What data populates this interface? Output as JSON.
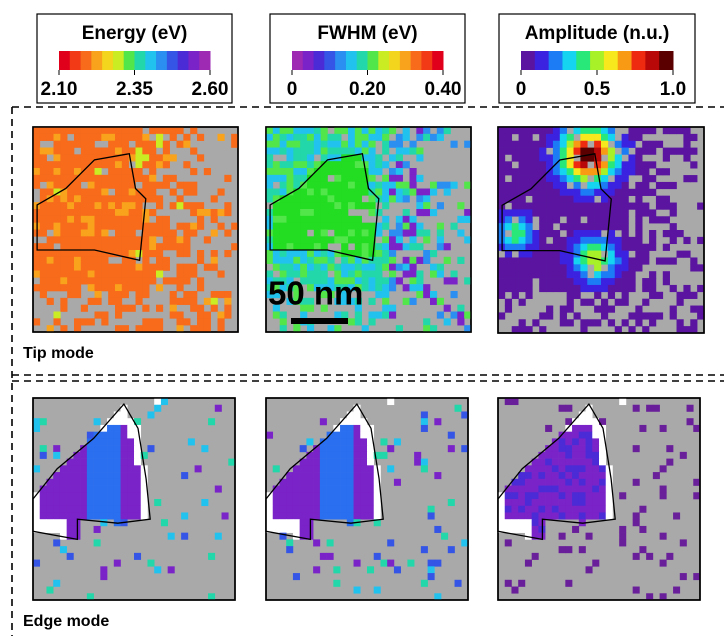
{
  "colorbars": [
    {
      "title": "Energy (eV)",
      "lim": [
        2.1,
        2.6
      ],
      "ticks": [
        {
          "value": 2.1,
          "label": "2.10"
        },
        {
          "value": 2.35,
          "label": "2.35"
        },
        {
          "value": 2.6,
          "label": "2.60"
        }
      ],
      "colors": [
        "#e0001c",
        "#f23a16",
        "#f76b1b",
        "#f9a21c",
        "#f4d51e",
        "#c9ec22",
        "#52e64a",
        "#22d7a9",
        "#21c3ee",
        "#2a8ff0",
        "#3455e6",
        "#4a2bd6",
        "#7a23c8",
        "#9e2ab3"
      ]
    },
    {
      "title": "FWHM (eV)",
      "lim": [
        0,
        0.4
      ],
      "ticks": [
        0,
        {
          "value": 0.2,
          "label": "0.20"
        },
        {
          "value": 0.4,
          "label": "0.40"
        }
      ],
      "colors": [
        "#9e2ab3",
        "#7a23c8",
        "#4a2bd6",
        "#3455e6",
        "#2a8ff0",
        "#21c3ee",
        "#22d7a9",
        "#52e64a",
        "#c9ec22",
        "#f4d51e",
        "#f9a21c",
        "#f76b1b",
        "#f23a16",
        "#e0001c"
      ]
    },
    {
      "title": "Amplitude (n.u.)",
      "lim": [
        0,
        1
      ],
      "ticks": [
        0,
        0.5,
        {
          "value": 1,
          "label": "1.0"
        }
      ],
      "colors": [
        "#5a14a0",
        "#3a22e0",
        "#1c7cf5",
        "#14d4f0",
        "#28e87a",
        "#a8f028",
        "#f6e81c",
        "#f89a14",
        "#ee2a10",
        "#b80808",
        "#5a0000"
      ]
    }
  ],
  "scale_bar": "50 nm",
  "rows": [
    {
      "label": "Tip mode"
    },
    {
      "label": "Edge mode"
    }
  ]
}
